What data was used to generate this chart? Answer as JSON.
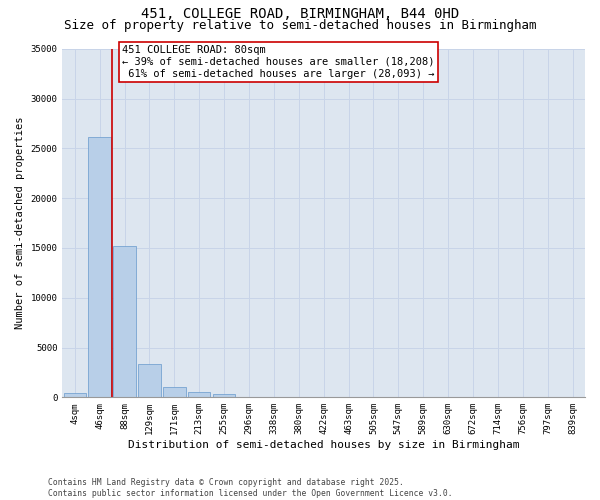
{
  "title_line1": "451, COLLEGE ROAD, BIRMINGHAM, B44 0HD",
  "title_line2": "Size of property relative to semi-detached houses in Birmingham",
  "xlabel": "Distribution of semi-detached houses by size in Birmingham",
  "ylabel": "Number of semi-detached properties",
  "categories": [
    "4sqm",
    "46sqm",
    "88sqm",
    "129sqm",
    "171sqm",
    "213sqm",
    "255sqm",
    "296sqm",
    "338sqm",
    "380sqm",
    "422sqm",
    "463sqm",
    "505sqm",
    "547sqm",
    "589sqm",
    "630sqm",
    "672sqm",
    "714sqm",
    "756sqm",
    "797sqm",
    "839sqm"
  ],
  "values": [
    400,
    26100,
    15200,
    3350,
    1050,
    520,
    300,
    80,
    0,
    0,
    0,
    0,
    0,
    0,
    0,
    0,
    0,
    0,
    0,
    0,
    0
  ],
  "bar_color": "#b8cfe8",
  "bar_edge_color": "#6699cc",
  "grid_color": "#c8d4e8",
  "background_color": "#dde6f0",
  "vline_color": "#cc0000",
  "annotation_text": "451 COLLEGE ROAD: 80sqm\n← 39% of semi-detached houses are smaller (18,208)\n 61% of semi-detached houses are larger (28,093) →",
  "annotation_box_color": "white",
  "annotation_box_edge_color": "#cc0000",
  "ylim": [
    0,
    35000
  ],
  "yticks": [
    0,
    5000,
    10000,
    15000,
    20000,
    25000,
    30000,
    35000
  ],
  "footnote": "Contains HM Land Registry data © Crown copyright and database right 2025.\nContains public sector information licensed under the Open Government Licence v3.0.",
  "title_fontsize": 10,
  "subtitle_fontsize": 9,
  "tick_fontsize": 6.5,
  "ylabel_fontsize": 7.5,
  "xlabel_fontsize": 8,
  "annotation_fontsize": 7.5,
  "footnote_fontsize": 5.8
}
